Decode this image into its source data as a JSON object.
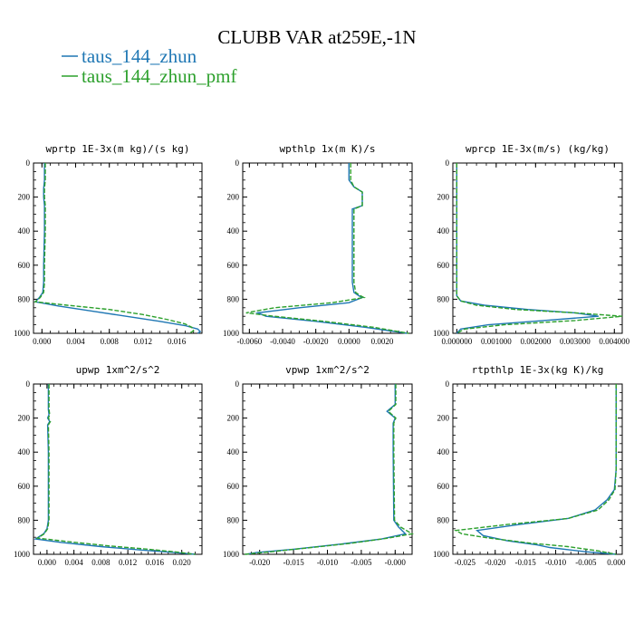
{
  "figure": {
    "title": "CLUBB VAR at259E,-1N",
    "legend": [
      {
        "label": "taus_144_zhun",
        "color": "#1f77b4",
        "dash": "solid"
      },
      {
        "label": "taus_144_zhun_pmf",
        "color": "#2ca02c",
        "dash": "dashed"
      }
    ]
  },
  "chart_data": [
    {
      "type": "line",
      "title": "wprtp  1E-3x(m kg)/(s kg)",
      "xlim": [
        -0.001,
        0.019
      ],
      "ylim": [
        0,
        1000
      ],
      "y_inverted": true,
      "xticks": [
        "0.000",
        "0.004",
        "0.008",
        "0.012",
        "0.016"
      ],
      "yticks": [
        "0",
        "200",
        "400",
        "600",
        "800",
        "1000"
      ],
      "series": [
        {
          "name": "taus_144_zhun",
          "color": "#1f77b4",
          "x": [
            0.0003,
            0.0003,
            0.0002,
            0.0002,
            0.0003,
            0.0003,
            0.0002,
            0.0002,
            0.0001,
            -0.0003,
            -0.0008,
            0.002,
            0.006,
            0.01,
            0.014,
            0.017,
            0.0185,
            0.0188,
            0.0185
          ],
          "y": [
            0,
            100,
            150,
            200,
            250,
            400,
            600,
            700,
            760,
            790,
            815,
            840,
            870,
            900,
            930,
            955,
            975,
            990,
            1000
          ]
        },
        {
          "name": "taus_144_zhun_pmf",
          "color": "#2ca02c",
          "x": [
            0.0004,
            0.0004,
            0.0003,
            0.0003,
            0.0004,
            0.0004,
            0.0003,
            0.0003,
            0.0002,
            -0.0002,
            -0.0008,
            0.003,
            0.008,
            0.012,
            0.015,
            0.017,
            0.0178,
            0.018,
            0.0175
          ],
          "y": [
            0,
            100,
            150,
            200,
            250,
            400,
            600,
            700,
            760,
            790,
            815,
            835,
            860,
            890,
            920,
            945,
            965,
            985,
            1000
          ]
        }
      ]
    },
    {
      "type": "line",
      "title": "wpthlp  1x(m K)/s",
      "xlim": [
        -0.0064,
        0.0038
      ],
      "ylim": [
        0,
        1000
      ],
      "y_inverted": true,
      "xticks": [
        "-0.0060",
        "-0.0040",
        "-0.0020",
        "0.0000",
        "0.0020"
      ],
      "yticks": [
        "0",
        "200",
        "400",
        "600",
        "800",
        "1000"
      ],
      "series": [
        {
          "name": "taus_144_zhun",
          "color": "#1f77b4",
          "x": [
            0.0,
            0.0,
            0.0003,
            0.0008,
            0.0008,
            0.0002,
            0.0002,
            0.0002,
            0.0003,
            0.0006,
            0.0008,
            0.0,
            -0.003,
            -0.0055,
            -0.005,
            -0.002,
            0.001,
            0.0035
          ],
          "y": [
            0,
            100,
            140,
            170,
            250,
            270,
            500,
            700,
            760,
            780,
            790,
            820,
            850,
            880,
            900,
            930,
            965,
            1000
          ]
        },
        {
          "name": "taus_144_zhun_pmf",
          "color": "#2ca02c",
          "x": [
            0.0001,
            0.0001,
            0.0003,
            0.0008,
            0.0008,
            0.0003,
            0.0003,
            0.0003,
            0.0004,
            0.0007,
            0.0009,
            -0.001,
            -0.0045,
            -0.0062,
            -0.0045,
            -0.0015,
            0.0015,
            0.0036
          ],
          "y": [
            0,
            100,
            140,
            170,
            250,
            270,
            500,
            700,
            760,
            780,
            790,
            820,
            850,
            880,
            900,
            930,
            965,
            1000
          ]
        }
      ]
    },
    {
      "type": "line",
      "title": "wprcp  1E-3x(m/s) (kg/kg)",
      "xlim": [
        -0.0001,
        0.0042
      ],
      "ylim": [
        0,
        1000
      ],
      "y_inverted": true,
      "xticks": [
        "0.000000",
        "0.001000",
        "0.002000",
        "0.003000",
        "0.004000"
      ],
      "yticks": [
        "0",
        "200",
        "400",
        "600",
        "800",
        "1000"
      ],
      "series": [
        {
          "name": "taus_144_zhun",
          "color": "#1f77b4",
          "x": [
            0.0,
            0.0,
            0.0,
            0.0,
            0.0001,
            0.0007,
            0.0018,
            0.003,
            0.0036,
            0.0022,
            0.0008,
            0.0001,
            0.0
          ],
          "y": [
            0,
            400,
            700,
            780,
            810,
            835,
            860,
            880,
            900,
            925,
            950,
            975,
            1000
          ]
        },
        {
          "name": "taus_144_zhun_pmf",
          "color": "#2ca02c",
          "x": [
            0.0,
            0.0,
            0.0,
            0.0,
            0.0001,
            0.0005,
            0.0015,
            0.003,
            0.0042,
            0.003,
            0.0012,
            0.0002,
            0.0
          ],
          "y": [
            0,
            400,
            700,
            780,
            810,
            835,
            860,
            880,
            900,
            925,
            950,
            975,
            1000
          ]
        }
      ]
    },
    {
      "type": "line",
      "title": "upwp  1xm^2/s^2",
      "xlim": [
        -0.002,
        0.023
      ],
      "ylim": [
        0,
        1000
      ],
      "y_inverted": true,
      "xticks": [
        "0.000",
        "0.004",
        "0.008",
        "0.012",
        "0.016",
        "0.020"
      ],
      "yticks": [
        "0",
        "200",
        "400",
        "600",
        "800",
        "1000"
      ],
      "series": [
        {
          "name": "taus_144_zhun",
          "color": "#1f77b4",
          "x": [
            0.0002,
            0.0002,
            0.0003,
            0.0001,
            0.0004,
            0.0001,
            0.0002,
            0.0002,
            0.0,
            -0.0005,
            -0.0017,
            0.002,
            0.008,
            0.014,
            0.019,
            0.022
          ],
          "y": [
            0,
            150,
            180,
            200,
            220,
            240,
            400,
            800,
            850,
            880,
            910,
            930,
            955,
            975,
            990,
            1000
          ]
        },
        {
          "name": "taus_144_zhun_pmf",
          "color": "#2ca02c",
          "x": [
            0.0003,
            0.0003,
            0.0004,
            0.0002,
            0.0005,
            0.0002,
            0.0003,
            0.0003,
            0.0001,
            -0.0004,
            -0.0014,
            0.003,
            0.009,
            0.015,
            0.0195,
            0.022
          ],
          "y": [
            0,
            150,
            180,
            200,
            220,
            240,
            400,
            800,
            850,
            880,
            905,
            925,
            950,
            970,
            988,
            1000
          ]
        }
      ]
    },
    {
      "type": "line",
      "title": "vpwp  1xm^2/s^2",
      "xlim": [
        -0.0225,
        0.0025
      ],
      "ylim": [
        0,
        1000
      ],
      "y_inverted": true,
      "xticks": [
        "-0.020",
        "-0.015",
        "-0.010",
        "-0.005",
        "-0.000"
      ],
      "yticks": [
        "0",
        "200",
        "400",
        "600",
        "800",
        "1000"
      ],
      "series": [
        {
          "name": "taus_144_zhun",
          "color": "#1f77b4",
          "x": [
            0.0,
            0.0,
            -0.0012,
            0.0,
            -0.0003,
            -0.0003,
            -0.0002,
            0.0005,
            0.0015,
            -0.002,
            -0.008,
            -0.015,
            -0.0205,
            -0.022
          ],
          "y": [
            0,
            120,
            160,
            200,
            230,
            400,
            800,
            840,
            880,
            910,
            940,
            970,
            990,
            1000
          ]
        },
        {
          "name": "taus_144_zhun_pmf",
          "color": "#2ca02c",
          "x": [
            0.0001,
            0.0001,
            -0.001,
            0.0001,
            -0.0002,
            -0.0002,
            -0.0001,
            0.0008,
            0.0025,
            -0.001,
            -0.0065,
            -0.0135,
            -0.019,
            -0.0222
          ],
          "y": [
            0,
            120,
            160,
            200,
            230,
            400,
            800,
            840,
            880,
            905,
            935,
            965,
            988,
            1000
          ]
        }
      ]
    },
    {
      "type": "line",
      "title": "rtpthlp  1E-3x(kg K)/kg",
      "xlim": [
        -0.027,
        0.001
      ],
      "ylim": [
        0,
        1000
      ],
      "y_inverted": true,
      "xticks": [
        "-0.025",
        "-0.020",
        "-0.015",
        "-0.010",
        "-0.005",
        "0.000"
      ],
      "yticks": [
        "0",
        "200",
        "400",
        "600",
        "800",
        "1000"
      ],
      "series": [
        {
          "name": "taus_144_zhun",
          "color": "#1f77b4",
          "x": [
            0.0,
            0.0,
            -0.0003,
            -0.0015,
            -0.0035,
            -0.008,
            -0.016,
            -0.023,
            -0.022,
            -0.018,
            -0.013,
            -0.011,
            -0.005,
            0.0
          ],
          "y": [
            0,
            500,
            620,
            680,
            740,
            790,
            825,
            860,
            890,
            920,
            945,
            960,
            985,
            1000
          ]
        },
        {
          "name": "taus_144_zhun_pmf",
          "color": "#2ca02c",
          "x": [
            0.0,
            0.0,
            -0.0002,
            -0.0012,
            -0.003,
            -0.008,
            -0.018,
            -0.0265,
            -0.0255,
            -0.021,
            -0.014,
            -0.008,
            -0.003,
            0.0
          ],
          "y": [
            0,
            500,
            620,
            680,
            740,
            790,
            825,
            860,
            880,
            905,
            935,
            955,
            980,
            1000
          ]
        }
      ]
    }
  ]
}
